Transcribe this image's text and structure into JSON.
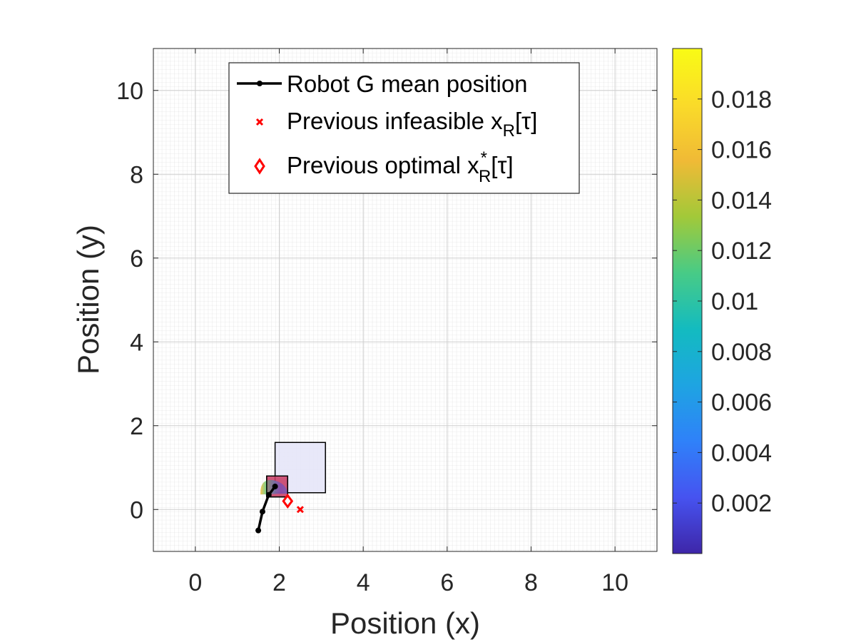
{
  "chart_data": {
    "type": "line",
    "xlabel": "Position (x)",
    "ylabel": "Position (y)",
    "xlim": [
      -1,
      11
    ],
    "ylim": [
      -1,
      11
    ],
    "xticks": [
      0,
      2,
      4,
      6,
      8,
      10
    ],
    "yticks": [
      0,
      2,
      4,
      6,
      8,
      10
    ],
    "grid": "minor",
    "legend_position": "top",
    "series": [
      {
        "name": "Robot G mean position",
        "kind": "line-with-markers",
        "color": "#000000",
        "x": [
          1.5,
          1.6,
          1.75,
          1.9
        ],
        "y": [
          -0.5,
          -0.05,
          0.35,
          0.55
        ]
      },
      {
        "name": "Previous infeasible x_R[τ]",
        "kind": "x-marker",
        "color": "#ff0000",
        "x": [
          2.5
        ],
        "y": [
          0.0
        ]
      },
      {
        "name": "Previous optimal x*_R[τ]",
        "kind": "diamond-marker",
        "color": "#ff0000",
        "x": [
          2.2
        ],
        "y": [
          0.2
        ]
      }
    ],
    "regions": [
      {
        "name": "goal-region",
        "x": [
          1.9,
          3.1
        ],
        "y": [
          0.4,
          1.6
        ],
        "fill": "#e6e6f8",
        "stroke": "#000000"
      },
      {
        "name": "robot-region",
        "x": [
          1.7,
          2.2
        ],
        "y": [
          0.3,
          0.8
        ],
        "fill": "#c83c64",
        "stroke": "#000000"
      }
    ],
    "distribution_blob": {
      "center": [
        1.85,
        0.5
      ],
      "radius_x": 0.35,
      "radius_y": 0.2
    },
    "colorbar": {
      "range": [
        0.0,
        0.02
      ],
      "ticks": [
        0.002,
        0.004,
        0.006,
        0.008,
        0.01,
        0.012,
        0.014,
        0.016,
        0.018
      ],
      "tick_labels": [
        "0.002",
        "0.004",
        "0.006",
        "0.008",
        "0.01",
        "0.012",
        "0.014",
        "0.016",
        "0.018"
      ],
      "colormap": [
        "#3e26a8",
        "#4653f0",
        "#2f81f9",
        "#1ea4e2",
        "#13bbc0",
        "#48cb86",
        "#a2c939",
        "#f0ba36",
        "#fadb29",
        "#f9fb15"
      ]
    },
    "legend": {
      "entry1_label": "Robot G mean position",
      "entry2_prefix": "Previous infeasible x",
      "entry2_sub": "R",
      "entry2_suffix": "[τ]",
      "entry3_prefix": "Previous optimal x",
      "entry3_sup": "*",
      "entry3_sub": "R",
      "entry3_suffix": "[τ]"
    }
  }
}
